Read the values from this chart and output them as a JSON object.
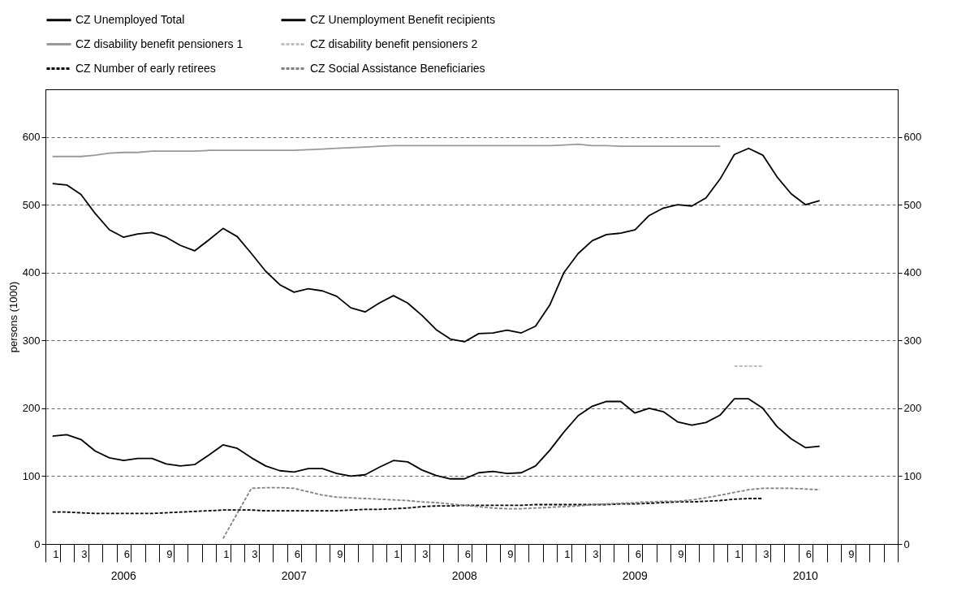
{
  "chart_data": {
    "type": "line",
    "ylabel": "persons (1000)",
    "categories": [
      "1",
      null,
      "3",
      null,
      null,
      "6",
      null,
      null,
      "9",
      null,
      null,
      null,
      "1",
      null,
      "3",
      null,
      null,
      "6",
      null,
      null,
      "9",
      null,
      null,
      null,
      "1",
      null,
      "3",
      null,
      null,
      "6",
      null,
      null,
      "9",
      null,
      null,
      null,
      "1",
      null,
      "3",
      null,
      null,
      "6",
      null,
      null,
      "9",
      null,
      null,
      null,
      "1",
      null,
      "3",
      null,
      null,
      "6",
      null,
      null,
      "9",
      null,
      null,
      null
    ],
    "series": [
      {
        "name": "CZ  Unemployed Total",
        "color": "#000000",
        "line_style": "solid",
        "values": [
          531,
          529,
          515,
          487,
          463,
          452,
          457,
          459,
          452,
          440,
          432,
          448,
          465,
          453,
          428,
          402,
          382,
          371,
          376,
          373,
          365,
          348,
          342,
          355,
          366,
          355,
          337,
          316,
          302,
          298,
          310,
          311,
          315,
          311,
          321,
          352,
          400,
          428,
          447,
          456,
          458,
          463,
          484,
          495,
          500,
          498,
          510,
          538,
          574,
          583,
          573,
          541,
          516,
          500,
          506,
          null,
          null,
          null,
          null,
          null
        ]
      },
      {
        "name": "CZ Unemployment Benefit recipients",
        "color": "#000000",
        "line_style": "solid",
        "values": [
          159,
          161,
          154,
          137,
          127,
          123,
          126,
          126,
          118,
          115,
          117,
          131,
          146,
          141,
          127,
          115,
          108,
          106,
          111,
          111,
          104,
          100,
          102,
          113,
          123,
          121,
          109,
          101,
          96,
          96,
          105,
          107,
          104,
          105,
          115,
          138,
          165,
          189,
          203,
          210,
          210,
          193,
          200,
          195,
          180,
          175,
          179,
          190,
          214,
          214,
          200,
          173,
          155,
          142,
          144,
          null,
          null,
          null,
          null,
          null
        ]
      },
      {
        "name": "CZ disability benefit pensioners 1",
        "color": "#999999",
        "line_style": "solid",
        "values": [
          571,
          571,
          571,
          573,
          576,
          577,
          577,
          579,
          579,
          579,
          579,
          580,
          580,
          580,
          580,
          580,
          580,
          580,
          581,
          582,
          583,
          584,
          585,
          586,
          587,
          587,
          587,
          587,
          587,
          587,
          587,
          587,
          587,
          587,
          587,
          587,
          588,
          589,
          587,
          587,
          586,
          586,
          586,
          586,
          586,
          586,
          586,
          586,
          null,
          null,
          null,
          null,
          null,
          null,
          null,
          null,
          null,
          null,
          null,
          null
        ]
      },
      {
        "name": "CZ disability benefit pensioners 2",
        "color": "#c0c0c0",
        "line_style": "dashed",
        "values": [
          null,
          null,
          null,
          null,
          null,
          null,
          null,
          null,
          null,
          null,
          null,
          null,
          null,
          null,
          null,
          null,
          null,
          null,
          null,
          null,
          null,
          null,
          null,
          null,
          null,
          null,
          null,
          null,
          null,
          null,
          null,
          null,
          null,
          null,
          null,
          null,
          null,
          null,
          null,
          null,
          null,
          null,
          null,
          null,
          null,
          null,
          null,
          null,
          262,
          262,
          262,
          null,
          null,
          null,
          null,
          null,
          null,
          null,
          null,
          null
        ]
      },
      {
        "name": "CZ Number of early retirees",
        "color": "#000000",
        "line_style": "dashed",
        "values": [
          47,
          47,
          46,
          45,
          45,
          45,
          45,
          45,
          46,
          47,
          48,
          49,
          50,
          50,
          50,
          49,
          49,
          49,
          49,
          49,
          49,
          50,
          51,
          51,
          52,
          53,
          55,
          56,
          56,
          57,
          57,
          57,
          57,
          57,
          58,
          58,
          58,
          58,
          58,
          58,
          59,
          59,
          60,
          61,
          62,
          62,
          63,
          64,
          66,
          67,
          67,
          null,
          null,
          null,
          null,
          null,
          null,
          null,
          null,
          null
        ]
      },
      {
        "name": "CZ Social Assistance Beneficiaries",
        "color": "#808080",
        "line_style": "dashed",
        "values": [
          null,
          null,
          null,
          null,
          null,
          null,
          null,
          null,
          null,
          null,
          null,
          null,
          8,
          45,
          82,
          83,
          83,
          82,
          77,
          72,
          69,
          68,
          67,
          66,
          65,
          64,
          62,
          61,
          59,
          57,
          55,
          53,
          52,
          52,
          53,
          54,
          55,
          56,
          58,
          59,
          60,
          61,
          62,
          63,
          63,
          65,
          68,
          72,
          76,
          80,
          82,
          82,
          82,
          81,
          80,
          null,
          null,
          null,
          null,
          null
        ]
      }
    ],
    "ylim": [
      0,
      670
    ],
    "yticks": [
      0,
      100,
      200,
      300,
      400,
      500,
      600
    ],
    "y2lim": [
      0,
      670
    ],
    "y2ticks": [
      0,
      100,
      200,
      300,
      400,
      500,
      600
    ],
    "grid": "y",
    "legend": "top",
    "annotations": [
      "2006",
      "2007",
      "2008",
      "2009",
      "2010"
    ]
  }
}
